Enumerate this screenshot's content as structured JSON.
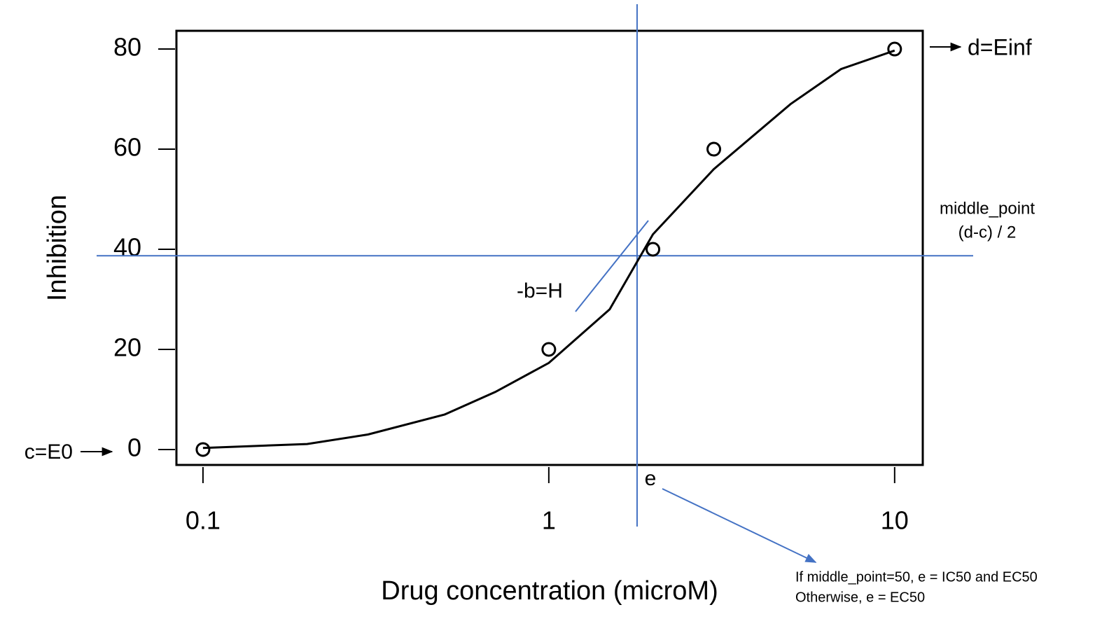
{
  "chart_data": {
    "type": "scatter",
    "x": [
      0.1,
      1,
      2,
      3,
      10
    ],
    "values": [
      0,
      20,
      40,
      60,
      80
    ],
    "xlabel": "Drug concentration (microM)",
    "ylabel": "Inhibition",
    "log_x": true,
    "xlim": [
      0.0838,
      12.06
    ],
    "ylim": [
      -3.08,
      83.64
    ],
    "xticks": [
      0.1,
      1,
      10
    ],
    "yticks": [
      0,
      20,
      40,
      60,
      80
    ],
    "color": "#000000",
    "fit": {
      "x": [
        0.1,
        0.2,
        0.3,
        0.5,
        0.7,
        1,
        1.5,
        2,
        3,
        5,
        7,
        10
      ],
      "y": [
        0.3,
        1.1,
        3,
        7,
        11.5,
        17.3,
        28,
        43,
        56,
        69,
        76,
        79.7
      ]
    },
    "ref_color": "#4472c4",
    "hline": 38.7,
    "vline": 1.8,
    "annotations": [
      "c=E0",
      "d=Einf",
      "middle_point",
      "(d-c) / 2",
      "-b=H",
      "e",
      "If middle_point=50,  e = IC50 and EC50",
      "Otherwise, e = EC50"
    ]
  }
}
